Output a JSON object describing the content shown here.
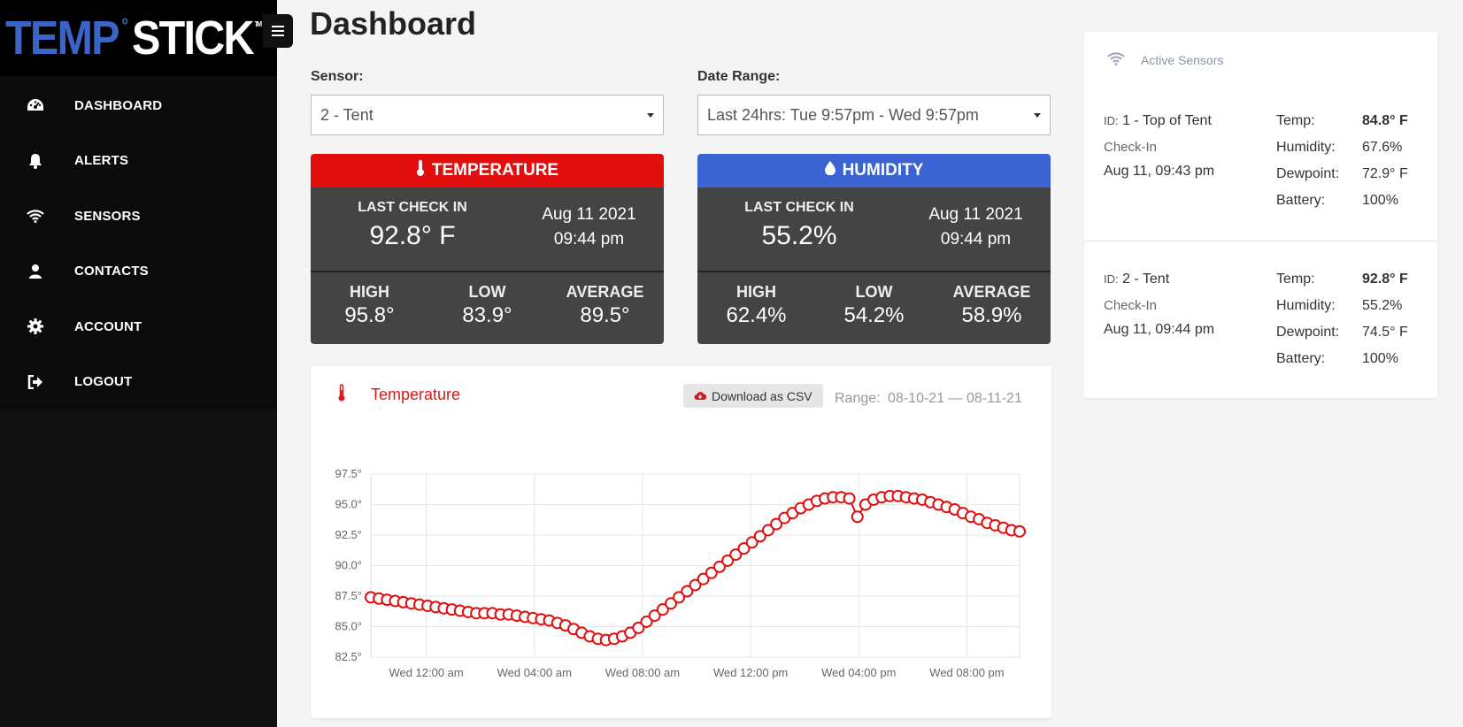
{
  "brand": {
    "part1": "TEMP",
    "degree": "°",
    "part2": "STICK",
    "tm": "TM"
  },
  "nav": {
    "items": [
      {
        "label": "DASHBOARD",
        "icon": "dashboard-gauge-icon"
      },
      {
        "label": "ALERTS",
        "icon": "bell-icon"
      },
      {
        "label": "SENSORS",
        "icon": "wifi-icon"
      },
      {
        "label": "CONTACTS",
        "icon": "user-icon"
      },
      {
        "label": "ACCOUNT",
        "icon": "gear-icon"
      },
      {
        "label": "LOGOUT",
        "icon": "logout-icon"
      }
    ]
  },
  "header": {
    "title": "Dashboard"
  },
  "filters": {
    "sensor_label": "Sensor:",
    "sensor_value": "2 - Tent",
    "date_label": "Date Range:",
    "date_value": "Last 24hrs: Tue 9:57pm - Wed 9:57pm"
  },
  "temperature": {
    "title": "TEMPERATURE",
    "color": "#e20e0e",
    "last_check_label": "LAST CHECK IN",
    "last_value": "92.8° F",
    "date": "Aug 11 2021",
    "time": "09:44 pm",
    "high_label": "HIGH",
    "high": "95.8°",
    "low_label": "LOW",
    "low": "83.9°",
    "avg_label": "AVERAGE",
    "avg": "89.5°"
  },
  "humidity": {
    "title": "HUMIDITY",
    "color": "#3b63d2",
    "last_check_label": "LAST CHECK IN",
    "last_value": "55.2%",
    "date": "Aug 11 2021",
    "time": "09:44 pm",
    "high_label": "HIGH",
    "high": "62.4%",
    "low_label": "LOW",
    "low": "54.2%",
    "avg_label": "AVERAGE",
    "avg": "58.9%"
  },
  "chart_panel": {
    "title": "Temperature",
    "csv_button": "Download as CSV",
    "range_label": "Range:",
    "range_value": "08-10-21 — 08-11-21"
  },
  "chart_data": {
    "type": "line",
    "title": "",
    "xlabel": "",
    "ylabel": "",
    "ylim": [
      82.5,
      97.5
    ],
    "y_ticks": [
      "97.5°",
      "95.0°",
      "92.5°",
      "90.0°",
      "87.5°",
      "85.0°",
      "82.5°"
    ],
    "x_tick_labels": [
      "Wed 12:00 am",
      "Wed 04:00 am",
      "Wed 08:00 am",
      "Wed 12:00 pm",
      "Wed 04:00 pm",
      "Wed 08:00 pm"
    ],
    "x_tick_hours": [
      2.05,
      6.05,
      10.05,
      14.05,
      18.05,
      22.05
    ],
    "x_range_hours": [
      0,
      24
    ],
    "grid": true,
    "color": "#e20e0e",
    "series": [
      {
        "x": [
          0.0,
          0.3,
          0.6,
          0.9,
          1.2,
          1.5,
          1.8,
          2.1,
          2.4,
          2.7,
          3.0,
          3.3,
          3.6,
          3.9,
          4.2,
          4.5,
          4.8,
          5.1,
          5.4,
          5.7,
          6.0,
          6.3,
          6.6,
          6.9,
          7.2,
          7.5,
          7.8,
          8.1,
          8.4,
          8.7,
          9.0,
          9.3,
          9.6,
          9.9,
          10.2,
          10.5,
          10.8,
          11.1,
          11.4,
          11.7,
          12.0,
          12.3,
          12.6,
          12.9,
          13.2,
          13.5,
          13.8,
          14.1,
          14.4,
          14.7,
          15.0,
          15.3,
          15.6,
          15.9,
          16.2,
          16.5,
          16.8,
          17.1,
          17.4,
          17.7,
          18.0,
          18.3,
          18.6,
          18.9,
          19.2,
          19.5,
          19.8,
          20.1,
          20.4,
          20.7,
          21.0,
          21.3,
          21.6,
          21.9,
          22.2,
          22.5,
          22.8,
          23.1,
          23.4,
          23.7,
          24.0
        ],
        "y": [
          87.4,
          87.3,
          87.2,
          87.1,
          87.0,
          86.9,
          86.8,
          86.7,
          86.6,
          86.5,
          86.4,
          86.3,
          86.2,
          86.1,
          86.1,
          86.1,
          86.0,
          86.0,
          85.9,
          85.8,
          85.7,
          85.6,
          85.5,
          85.3,
          85.1,
          84.8,
          84.5,
          84.2,
          84.0,
          83.9,
          84.0,
          84.2,
          84.5,
          84.9,
          85.4,
          85.9,
          86.4,
          86.9,
          87.4,
          87.9,
          88.4,
          88.9,
          89.4,
          89.9,
          90.4,
          90.9,
          91.4,
          91.9,
          92.4,
          92.9,
          93.4,
          93.9,
          94.3,
          94.7,
          95.0,
          95.3,
          95.5,
          95.6,
          95.6,
          95.5,
          94.0,
          95.0,
          95.4,
          95.6,
          95.7,
          95.7,
          95.6,
          95.5,
          95.4,
          95.2,
          95.0,
          94.8,
          94.6,
          94.3,
          94.0,
          93.8,
          93.5,
          93.3,
          93.1,
          92.9,
          92.8
        ]
      }
    ]
  },
  "active_sensors": {
    "title": "Active Sensors",
    "sensors": [
      {
        "id_prefix": "ID:",
        "id": "1 - Top of Tent",
        "checkin_label": "Check-In",
        "checkin": "Aug 11, 09:43 pm",
        "temp_label": "Temp:",
        "temp": "84.8° F",
        "humidity_label": "Humidity:",
        "humidity": "67.6%",
        "dewpoint_label": "Dewpoint:",
        "dewpoint": "72.9° F",
        "battery_label": "Battery:",
        "battery": "100%"
      },
      {
        "id_prefix": "ID:",
        "id": "2 - Tent",
        "checkin_label": "Check-In",
        "checkin": "Aug 11, 09:44 pm",
        "temp_label": "Temp:",
        "temp": "92.8° F",
        "humidity_label": "Humidity:",
        "humidity": "55.2%",
        "dewpoint_label": "Dewpoint:",
        "dewpoint": "74.5° F",
        "battery_label": "Battery:",
        "battery": "100%"
      }
    ]
  }
}
